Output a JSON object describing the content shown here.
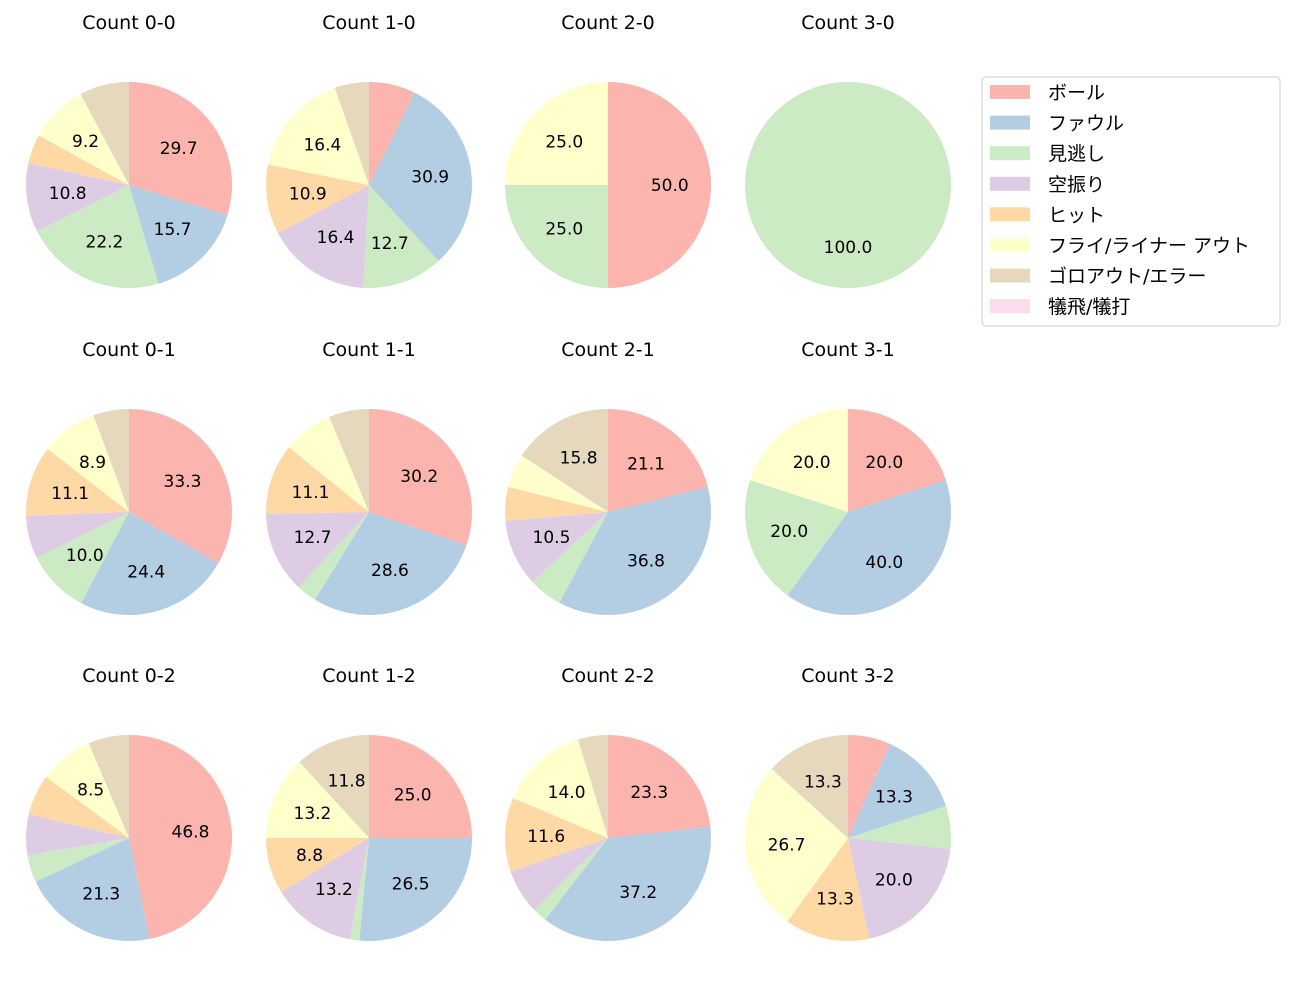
{
  "legend": {
    "position": "top-right",
    "entries": [
      {
        "label": "ボール",
        "color": "#fbb4ae"
      },
      {
        "label": "ファウル",
        "color": "#b3cde3"
      },
      {
        "label": "見逃し",
        "color": "#ccebc5"
      },
      {
        "label": "空振り",
        "color": "#decbe4"
      },
      {
        "label": "ヒット",
        "color": "#fed9a6"
      },
      {
        "label": "フライ/ライナー アウト",
        "color": "#ffffcc"
      },
      {
        "label": "ゴロアウト/エラー",
        "color": "#e5d8bd"
      },
      {
        "label": "犠飛/犠打",
        "color": "#fddaec"
      }
    ]
  },
  "chart_data": [
    {
      "type": "pie",
      "title": "Count 0-0",
      "values": [
        29.7,
        15.7,
        22.2,
        10.8,
        4.6,
        9.2,
        7.8,
        0
      ],
      "labels": [
        "29.7",
        "15.7",
        "22.2",
        "10.8",
        "",
        "9.2",
        "",
        ""
      ]
    },
    {
      "type": "pie",
      "title": "Count 1-0",
      "values": [
        7.3,
        30.9,
        12.7,
        16.4,
        10.9,
        16.4,
        5.4,
        0
      ],
      "labels": [
        "",
        "30.9",
        "12.7",
        "16.4",
        "10.9",
        "16.4",
        "",
        ""
      ]
    },
    {
      "type": "pie",
      "title": "Count 2-0",
      "values": [
        50.0,
        0,
        25.0,
        0,
        0,
        25.0,
        0,
        0
      ],
      "labels": [
        "50.0",
        "",
        "25.0",
        "",
        "",
        "25.0",
        "",
        ""
      ]
    },
    {
      "type": "pie",
      "title": "Count 3-0",
      "values": [
        0,
        0,
        100.0,
        0,
        0,
        0,
        0,
        0
      ],
      "labels": [
        "",
        "",
        "100.0",
        "",
        "",
        "",
        "",
        ""
      ]
    },
    {
      "type": "pie",
      "title": "Count 0-1",
      "values": [
        33.3,
        24.4,
        10.0,
        6.7,
        11.1,
        8.9,
        5.6,
        0
      ],
      "labels": [
        "33.3",
        "24.4",
        "10.0",
        "",
        "11.1",
        "8.9",
        "",
        ""
      ]
    },
    {
      "type": "pie",
      "title": "Count 1-1",
      "values": [
        30.2,
        28.6,
        3.2,
        12.7,
        11.1,
        7.9,
        6.3,
        0
      ],
      "labels": [
        "30.2",
        "28.6",
        "",
        "12.7",
        "11.1",
        "",
        "",
        ""
      ]
    },
    {
      "type": "pie",
      "title": "Count 2-1",
      "values": [
        21.1,
        36.8,
        5.3,
        10.5,
        5.3,
        5.3,
        15.8,
        0
      ],
      "labels": [
        "21.1",
        "36.8",
        "",
        "10.5",
        "",
        "",
        "15.8",
        ""
      ]
    },
    {
      "type": "pie",
      "title": "Count 3-1",
      "values": [
        20.0,
        40.0,
        20.0,
        0,
        0,
        20.0,
        0,
        0
      ],
      "labels": [
        "20.0",
        "40.0",
        "20.0",
        "",
        "",
        "20.0",
        "",
        ""
      ]
    },
    {
      "type": "pie",
      "title": "Count 0-2",
      "values": [
        46.8,
        21.3,
        4.3,
        6.4,
        6.4,
        8.5,
        6.4,
        0
      ],
      "labels": [
        "46.8",
        "21.3",
        "",
        "",
        "",
        "8.5",
        "",
        ""
      ]
    },
    {
      "type": "pie",
      "title": "Count 1-2",
      "values": [
        25.0,
        26.5,
        1.5,
        13.2,
        8.8,
        13.2,
        11.8,
        0
      ],
      "labels": [
        "25.0",
        "26.5",
        "",
        "13.2",
        "8.8",
        "13.2",
        "11.8",
        ""
      ]
    },
    {
      "type": "pie",
      "title": "Count 2-2",
      "values": [
        23.3,
        37.2,
        2.3,
        7.0,
        11.6,
        14.0,
        4.7,
        0
      ],
      "labels": [
        "23.3",
        "37.2",
        "",
        "",
        "11.6",
        "14.0",
        "",
        ""
      ]
    },
    {
      "type": "pie",
      "title": "Count 3-2",
      "values": [
        6.7,
        13.3,
        6.7,
        20.0,
        13.3,
        26.7,
        13.3,
        0
      ],
      "labels": [
        "",
        "13.3",
        "",
        "20.0",
        "13.3",
        "26.7",
        "13.3",
        ""
      ]
    }
  ]
}
